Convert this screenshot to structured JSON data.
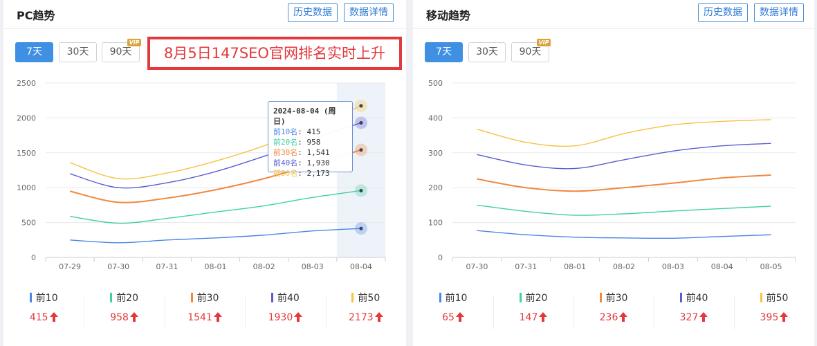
{
  "pc": {
    "title": "PC趋势",
    "history_btn": "历史数据",
    "detail_btn": "数据详情",
    "ranges": [
      "7天",
      "30天",
      "90天"
    ],
    "active_range": "7天",
    "vip_badge": "VIP",
    "banner": "8月5日147SEO官网排名实时上升",
    "tooltip": {
      "title": "2024-08-04 (周日)",
      "rows": [
        {
          "label": "前10名",
          "value": "415"
        },
        {
          "label": "前20名",
          "value": "958"
        },
        {
          "label": "前30名",
          "value": "1,541"
        },
        {
          "label": "前40名",
          "value": "1,930"
        },
        {
          "label": "前50名",
          "value": "2,173"
        }
      ]
    },
    "stats": [
      {
        "label": "前10",
        "value": "415"
      },
      {
        "label": "前20",
        "value": "958"
      },
      {
        "label": "前30",
        "value": "1541"
      },
      {
        "label": "前40",
        "value": "1930"
      },
      {
        "label": "前50",
        "value": "2173"
      }
    ]
  },
  "mobile": {
    "title": "移动趋势",
    "history_btn": "历史数据",
    "detail_btn": "数据详情",
    "ranges": [
      "7天",
      "30天",
      "90天"
    ],
    "active_range": "7天",
    "vip_badge": "VIP",
    "stats": [
      {
        "label": "前10",
        "value": "65"
      },
      {
        "label": "前20",
        "value": "147"
      },
      {
        "label": "前30",
        "value": "236"
      },
      {
        "label": "前40",
        "value": "327"
      },
      {
        "label": "前50",
        "value": "395"
      }
    ]
  },
  "colors": {
    "top10": "#4a86e8",
    "top20": "#3fcfa5",
    "top30": "#f0883e",
    "top40": "#5b5bd6",
    "top50": "#f5c242",
    "accent": "#3f8fe3",
    "up": "#e4393c"
  },
  "chart_data": [
    {
      "type": "line",
      "x": [
        "07-29",
        "07-30",
        "07-31",
        "08-01",
        "08-02",
        "08-03",
        "08-04"
      ],
      "ylim": [
        0,
        2500
      ],
      "yticks": [
        0,
        500,
        1000,
        1500,
        2000,
        2500
      ],
      "grid": true,
      "highlight_x": "08-04",
      "series": [
        {
          "name": "前10名",
          "color_key": "top10",
          "values": [
            250,
            210,
            250,
            280,
            320,
            380,
            415
          ]
        },
        {
          "name": "前20名",
          "color_key": "top20",
          "values": [
            590,
            490,
            560,
            650,
            740,
            860,
            958
          ]
        },
        {
          "name": "前30名",
          "color_key": "top30",
          "values": [
            950,
            790,
            850,
            970,
            1130,
            1330,
            1541
          ]
        },
        {
          "name": "前40名",
          "color_key": "top40",
          "values": [
            1200,
            1000,
            1070,
            1230,
            1450,
            1700,
            1930
          ]
        },
        {
          "name": "前50名",
          "color_key": "top50",
          "values": [
            1360,
            1130,
            1210,
            1380,
            1600,
            1880,
            2173
          ]
        }
      ]
    },
    {
      "type": "line",
      "x": [
        "07-30",
        "07-31",
        "08-01",
        "08-02",
        "08-03",
        "08-04",
        "08-05"
      ],
      "ylim": [
        0,
        500
      ],
      "yticks": [
        0,
        100,
        200,
        300,
        400,
        500
      ],
      "grid": true,
      "series": [
        {
          "name": "前10名",
          "color_key": "top10",
          "values": [
            77,
            65,
            58,
            56,
            55,
            60,
            65
          ]
        },
        {
          "name": "前20名",
          "color_key": "top20",
          "values": [
            150,
            132,
            121,
            125,
            133,
            140,
            147
          ]
        },
        {
          "name": "前30名",
          "color_key": "top30",
          "values": [
            225,
            200,
            190,
            200,
            213,
            228,
            236
          ]
        },
        {
          "name": "前40名",
          "color_key": "top40",
          "values": [
            295,
            265,
            255,
            280,
            305,
            320,
            327
          ]
        },
        {
          "name": "前50名",
          "color_key": "top50",
          "values": [
            368,
            330,
            320,
            355,
            380,
            390,
            395
          ]
        }
      ]
    }
  ]
}
